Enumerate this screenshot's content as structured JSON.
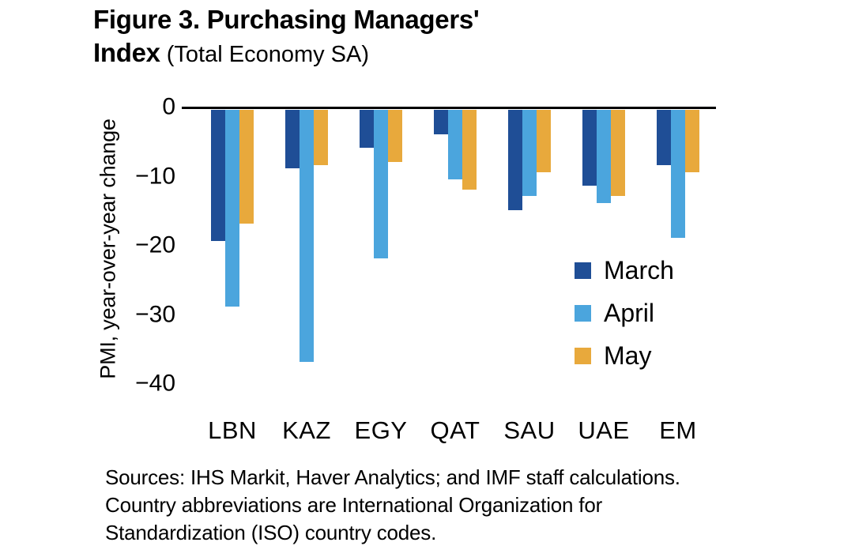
{
  "figure": {
    "title_line1": "Figure 3. Purchasing Managers'",
    "title_line2_bold": "Index",
    "title_line2_sub": " (Total Economy SA)"
  },
  "chart_data": {
    "type": "bar",
    "title": "Figure 3. Purchasing Managers' Index (Total Economy SA)",
    "xlabel": "",
    "ylabel": "PMI, year-over-year change",
    "ylim": [
      -40,
      0
    ],
    "yticks": [
      0,
      -10,
      -20,
      -30,
      -40
    ],
    "grid": false,
    "legend_position": "right-middle",
    "categories": [
      "LBN",
      "KAZ",
      "EGY",
      "QAT",
      "SAU",
      "UAE",
      "EM"
    ],
    "series": [
      {
        "name": "March",
        "color": "#1f4e96",
        "values": [
          -19,
          -8.5,
          -5.5,
          -3.5,
          -14.5,
          -11,
          -8
        ]
      },
      {
        "name": "April",
        "color": "#4ba5dd",
        "values": [
          -28.5,
          -36.5,
          -21.5,
          -10,
          -12.5,
          -13.5,
          -18.5
        ]
      },
      {
        "name": "May",
        "color": "#e8a93c",
        "values": [
          -16.5,
          -8,
          -7.5,
          -11.5,
          -9,
          -12.5,
          -9
        ]
      }
    ],
    "axis_color": "#000000"
  },
  "source_note": {
    "line1": "Sources: IHS Markit, Haver Analytics; and IMF staff calculations.",
    "line2": "Country abbreviations are International Organization for",
    "line3": "Standardization (ISO) country codes."
  }
}
